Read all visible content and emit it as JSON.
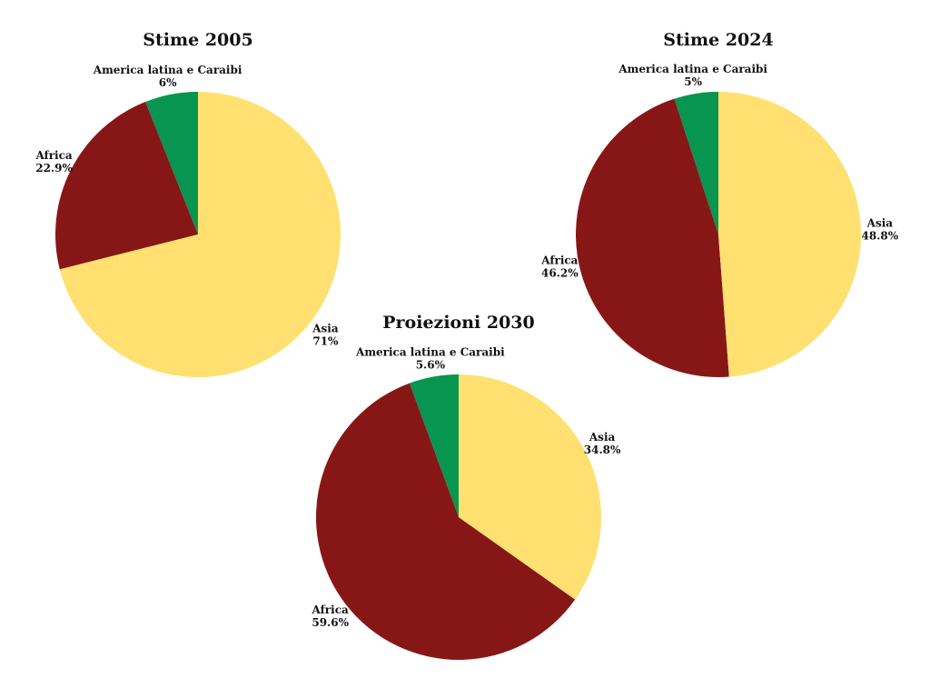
{
  "colors": {
    "Asia": "#FFE070",
    "Africa": "#871716",
    "America latina e Caraibi": "#079550"
  },
  "chart_data": [
    {
      "type": "pie",
      "title": "Stime 2005",
      "slices": [
        {
          "label": "Asia",
          "value": 71,
          "value_label": "71%"
        },
        {
          "label": "Africa",
          "value": 22.9,
          "value_label": "22.9%"
        },
        {
          "label": "America latina e Caraibi",
          "value": 6,
          "value_label": "6%"
        }
      ]
    },
    {
      "type": "pie",
      "title": "Stime 2024",
      "slices": [
        {
          "label": "Asia",
          "value": 48.8,
          "value_label": "48.8%"
        },
        {
          "label": "Africa",
          "value": 46.2,
          "value_label": "46.2%"
        },
        {
          "label": "America latina e Caraibi",
          "value": 5,
          "value_label": "5%"
        }
      ]
    },
    {
      "type": "pie",
      "title": "Proiezioni 2030",
      "slices": [
        {
          "label": "Asia",
          "value": 34.8,
          "value_label": "34.8%"
        },
        {
          "label": "Africa",
          "value": 59.6,
          "value_label": "59.6%"
        },
        {
          "label": "America latina e Caraibi",
          "value": 5.6,
          "value_label": "5.6%"
        }
      ]
    }
  ]
}
